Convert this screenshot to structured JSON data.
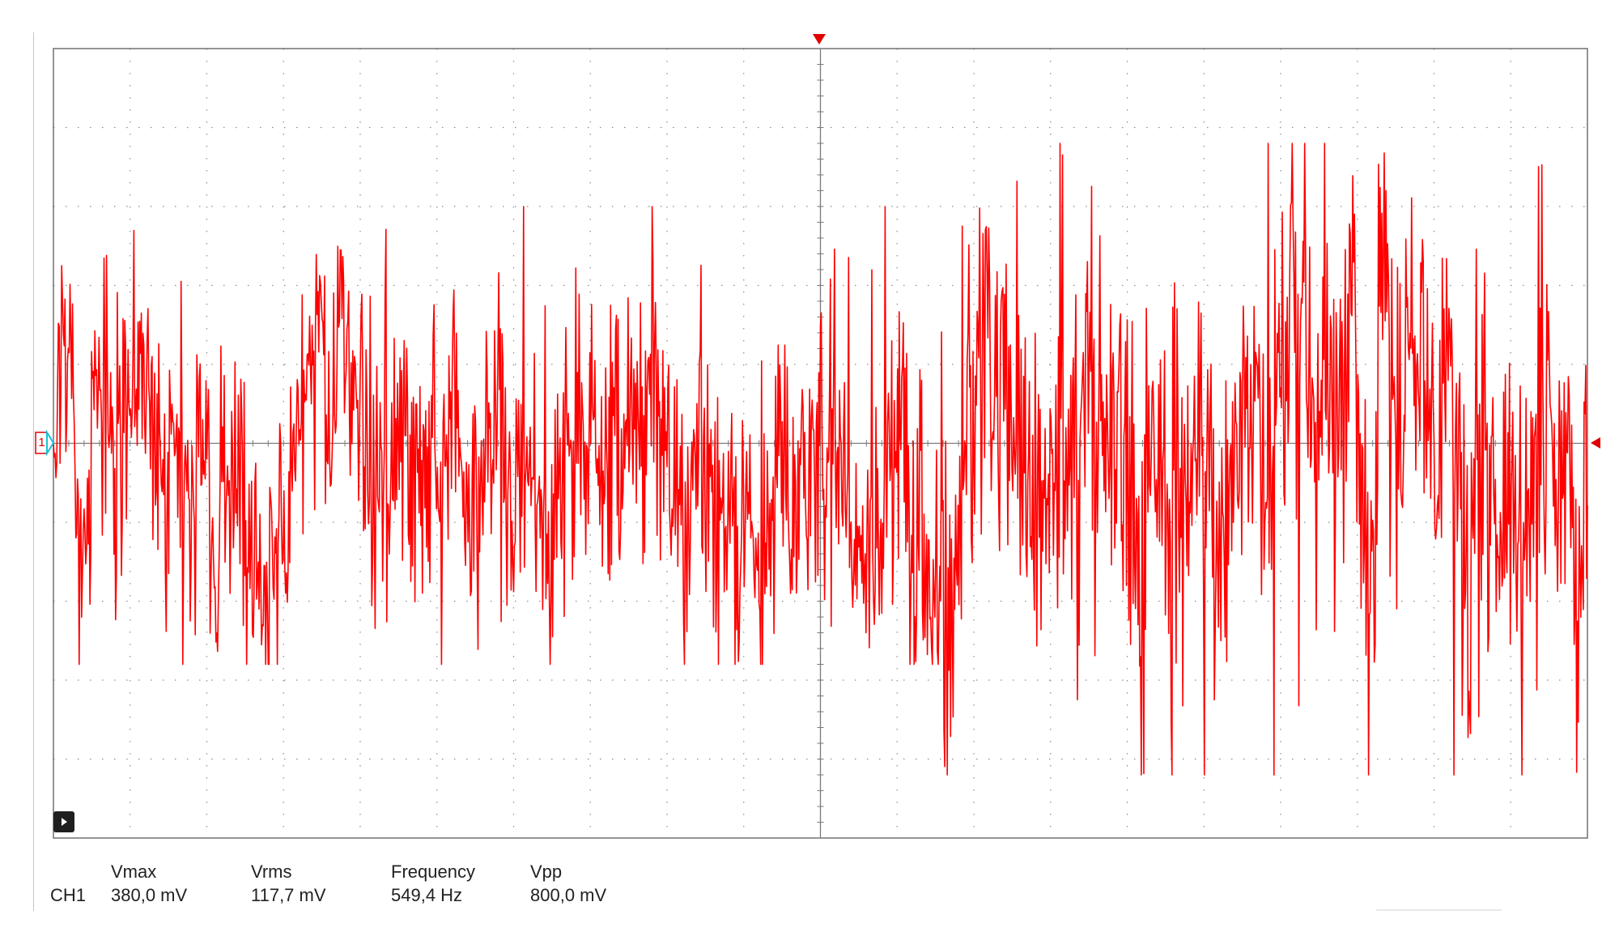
{
  "colors": {
    "trace": "#ff0000",
    "grid_dot": "#8c8c8c",
    "frame": "#707070",
    "axis": "#7a7a7a",
    "marker": "#e00000",
    "marker_outline": "#17c1d8",
    "text": "#222222",
    "background": "#ffffff"
  },
  "icons": {
    "run_button": "play-icon",
    "trigger_marker": "trigger-down-triangle",
    "channel_marker": "ch1-ground-arrow",
    "trigger_level": "trigger-level-left-triangle"
  },
  "channel_marker_label": "1",
  "measurements": {
    "channel": "CH1",
    "items": [
      {
        "label": "Vmax",
        "value": "380,0 mV"
      },
      {
        "label": "Vrms",
        "value": "117,7 mV"
      },
      {
        "label": "Frequency",
        "value": "549,4 Hz"
      },
      {
        "label": "Vpp",
        "value": "800,0 mV"
      }
    ]
  },
  "chart_data": {
    "type": "line",
    "grid": true,
    "x_divisions": 20,
    "y_divisions": 10,
    "series": [
      {
        "trace": "noise",
        "segments": [
          {
            "from_div": 0,
            "to_div": 11.6,
            "min_div": -2.8,
            "max_div": 3.0
          },
          {
            "from_div": 11.6,
            "to_div": 20,
            "min_div": -4.2,
            "max_div": 3.8
          }
        ]
      }
    ]
  }
}
